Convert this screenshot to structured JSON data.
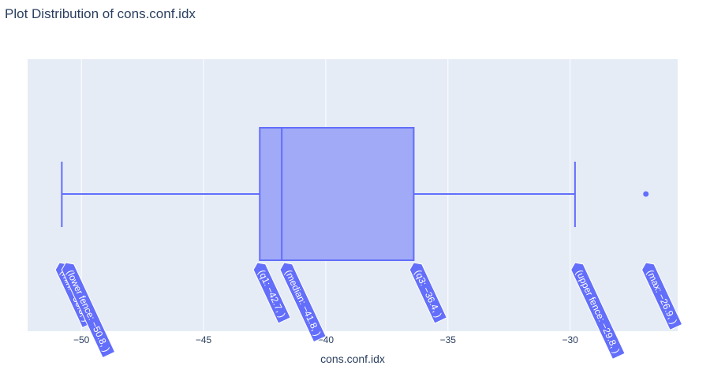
{
  "title": "Plot Distribution of cons.conf.idx",
  "chart_data": {
    "type": "box",
    "title": "Plot Distribution of cons.conf.idx",
    "xlabel": "cons.conf.idx",
    "ylabel": "",
    "orientation": "horizontal",
    "xlim": [
      -52.2,
      -25.6
    ],
    "xticks": [
      -50,
      -45,
      -40,
      -35,
      -30
    ],
    "xtick_labels": [
      "−50",
      "−45",
      "−40",
      "−35",
      "−30"
    ],
    "grid": true,
    "stats": {
      "min": -50.8,
      "lower_fence": -50.8,
      "q1": -42.7,
      "median": -41.8,
      "q3": -36.4,
      "upper_fence": -29.8,
      "max": -26.9
    },
    "outliers": [
      -26.9
    ],
    "hover_labels": [
      {
        "key": "min",
        "text": "(min: −50.8, )"
      },
      {
        "key": "lower_fence",
        "text": "(lower fence: −50.8, )"
      },
      {
        "key": "q1",
        "text": "(q1: −42.7, )"
      },
      {
        "key": "median",
        "text": "(median: −41.8, )"
      },
      {
        "key": "q3",
        "text": "(q3: −36.4, )"
      },
      {
        "key": "upper_fence",
        "text": "(upper fence: −29.8, )"
      },
      {
        "key": "max",
        "text": "(max: −26.9, )"
      }
    ],
    "colors": {
      "plot_bg": "#e5ecf6",
      "grid": "#ffffff",
      "box_line": "#636efa",
      "box_fill": "#a1aaf7",
      "label_bg": "#636efa",
      "text": "#2a3f5f"
    }
  }
}
